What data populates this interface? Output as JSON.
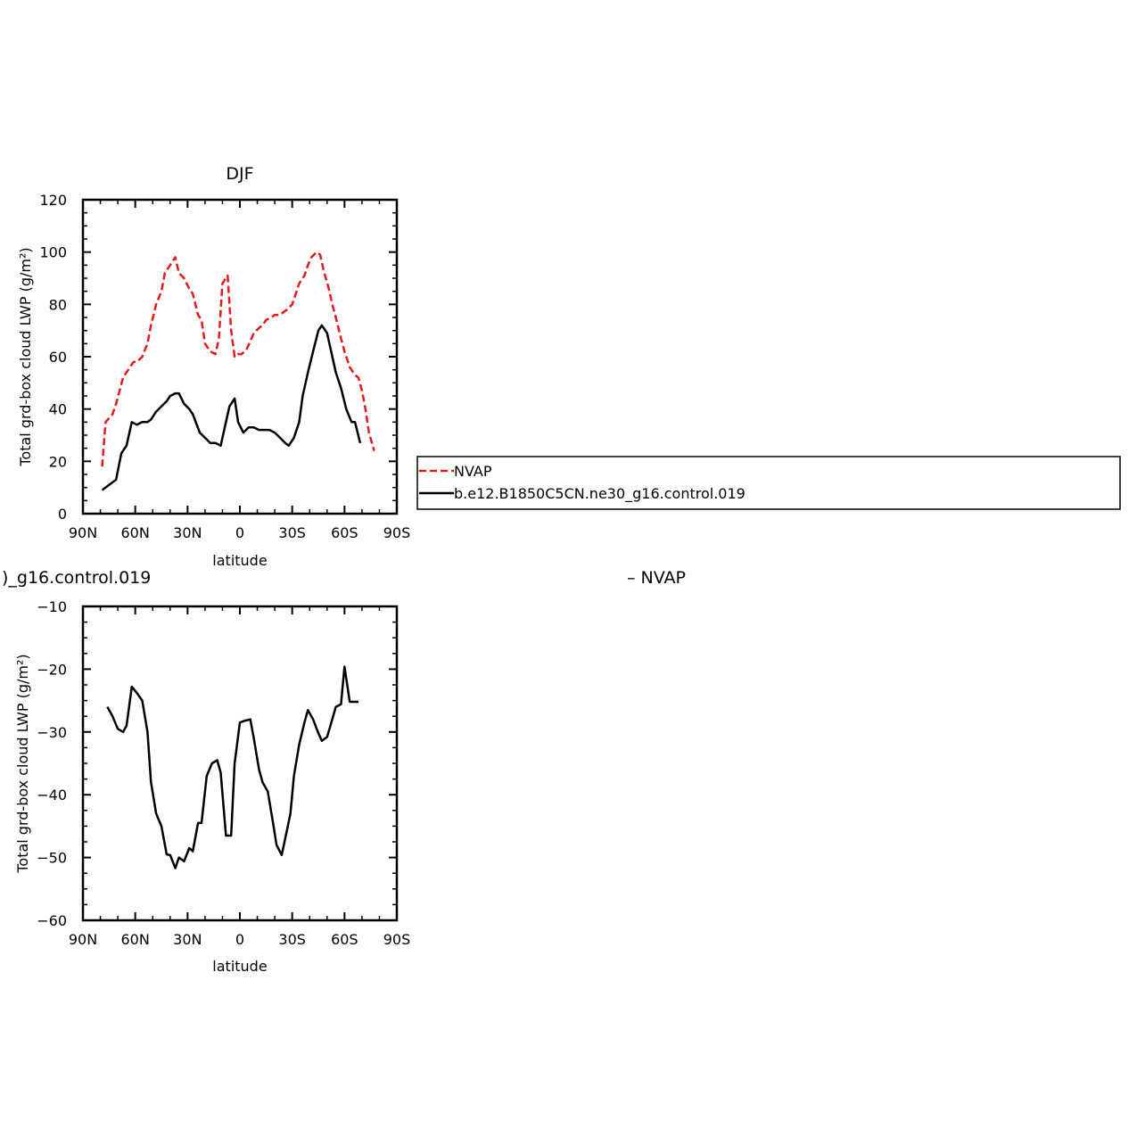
{
  "top_label_left": ")_g16.control.019",
  "top_label_right": "– NVAP",
  "legend": {
    "items": [
      {
        "label": "NVAP",
        "color": "#e41a1c",
        "dash": "8,4"
      },
      {
        "label": "b.e12.B1850C5CN.ne30_g16.control.019",
        "color": "#000000",
        "dash": ""
      }
    ]
  },
  "chart_data": [
    {
      "type": "line",
      "title": "DJF",
      "xlabel": "latitude",
      "ylabel": "Total grd-box cloud LWP (g/m²)",
      "xlim": [
        90,
        -90
      ],
      "ylim": [
        0,
        120
      ],
      "xticks": [
        90,
        60,
        30,
        0,
        -30,
        -60,
        -90
      ],
      "xtick_labels": [
        "90N",
        "60N",
        "30N",
        "0",
        "30S",
        "60S",
        "90S"
      ],
      "yticks": [
        0,
        20,
        40,
        60,
        80,
        100,
        120
      ],
      "ytick_labels": [
        "0",
        "20",
        "40",
        "60",
        "80",
        "100",
        "120"
      ],
      "series": [
        {
          "name": "NVAP",
          "color": "#e41a1c",
          "dash": "8,4",
          "x": [
            79,
            77,
            73,
            71,
            67,
            65,
            63,
            61,
            59,
            56,
            53,
            51,
            48,
            45,
            43,
            40,
            37,
            35,
            32,
            29,
            27,
            24,
            22,
            20,
            17,
            14,
            12,
            10,
            7,
            5,
            3,
            1,
            -1,
            -4,
            -6,
            -8,
            -11,
            -13,
            -15,
            -18,
            -20,
            -23,
            -25,
            -27,
            -30,
            -32,
            -34,
            -37,
            -39,
            -41,
            -44,
            -46,
            -48,
            -51,
            -53,
            -55,
            -58,
            -60,
            -63,
            -66,
            -68,
            -70,
            -72,
            -74,
            -77
          ],
          "y": [
            18,
            35,
            38,
            42,
            52,
            54,
            56,
            58,
            58,
            60,
            65,
            72,
            80,
            85,
            92,
            95,
            98,
            92,
            90,
            86,
            84,
            76,
            74,
            65,
            62,
            61,
            67,
            88,
            91,
            70,
            60,
            61,
            61,
            63,
            66,
            69,
            71,
            72,
            74,
            75,
            76,
            76,
            77,
            78,
            80,
            84,
            88,
            91,
            95,
            98,
            100,
            99,
            93,
            86,
            80,
            75,
            67,
            62,
            56,
            53,
            52,
            47,
            40,
            31,
            24
          ]
        },
        {
          "name": "b.e12.B1850C5CN.ne30_g16.control.019",
          "color": "#000000",
          "dash": "",
          "x": [
            79,
            75,
            71,
            68,
            65,
            62,
            59,
            56,
            53,
            51,
            48,
            45,
            42,
            40,
            37,
            35,
            32,
            29,
            27,
            23,
            20,
            17,
            14,
            11,
            9,
            6,
            3,
            1,
            -2,
            -5,
            -8,
            -11,
            -14,
            -17,
            -20,
            -23,
            -26,
            -28,
            -31,
            -34,
            -36,
            -39,
            -42,
            -45,
            -47,
            -50,
            -52,
            -55,
            -58,
            -61,
            -64,
            -66,
            -69
          ],
          "y": [
            9,
            11,
            13,
            23,
            26,
            35,
            34,
            35,
            35,
            36,
            39,
            41,
            43,
            45,
            46,
            46,
            42,
            40,
            38,
            31,
            29,
            27,
            27,
            26,
            32,
            41,
            44,
            35,
            31,
            33,
            33,
            32,
            32,
            32,
            31,
            29,
            27,
            26,
            29,
            35,
            45,
            54,
            62,
            70,
            72,
            69,
            63,
            54,
            48,
            40,
            35,
            35,
            27
          ]
        }
      ]
    },
    {
      "type": "line",
      "title": "",
      "xlabel": "latitude",
      "ylabel": "Total grd-box cloud LWP (g/m²)",
      "xlim": [
        90,
        -90
      ],
      "ylim": [
        -60,
        -10
      ],
      "xticks": [
        90,
        60,
        30,
        0,
        -30,
        -60,
        -90
      ],
      "xtick_labels": [
        "90N",
        "60N",
        "30N",
        "0",
        "30S",
        "60S",
        "90S"
      ],
      "yticks": [
        -60,
        -50,
        -40,
        -30,
        -20,
        -10
      ],
      "ytick_labels": [
        "−60",
        "−50",
        "−40",
        "−30",
        "−20",
        "−10"
      ],
      "series": [
        {
          "color": "#000000",
          "dash": "",
          "x": [
            76,
            73,
            70,
            67,
            65,
            62,
            59,
            56,
            53,
            51,
            48,
            45,
            42,
            40,
            37,
            35,
            32,
            29,
            27,
            24,
            22,
            19,
            16,
            13,
            11,
            8,
            5,
            3,
            0,
            -3,
            -6,
            -8,
            -11,
            -13,
            -16,
            -19,
            -21,
            -24,
            -26,
            -29,
            -31,
            -34,
            -37,
            -39,
            -42,
            -45,
            -47,
            -50,
            -52,
            -55,
            -58,
            -60,
            -63,
            -65,
            -68
          ],
          "y": [
            -26,
            -27.5,
            -29.5,
            -30,
            -29,
            -22.8,
            -23.8,
            -25,
            -30,
            -38,
            -43,
            -45,
            -49.5,
            -49.6,
            -51.7,
            -50,
            -50.6,
            -48.5,
            -49,
            -44.5,
            -44.5,
            -37,
            -35,
            -34.5,
            -36.5,
            -46.5,
            -46.5,
            -35,
            -28.5,
            -28.2,
            -28,
            -31,
            -36,
            -38,
            -39.5,
            -44.5,
            -48,
            -49.6,
            -47,
            -43,
            -37,
            -32,
            -28.5,
            -26.5,
            -28,
            -30.2,
            -31.4,
            -30.8,
            -28.9,
            -26,
            -25.6,
            -19.6,
            -25.2,
            -25.2,
            -25.2
          ]
        }
      ]
    }
  ]
}
